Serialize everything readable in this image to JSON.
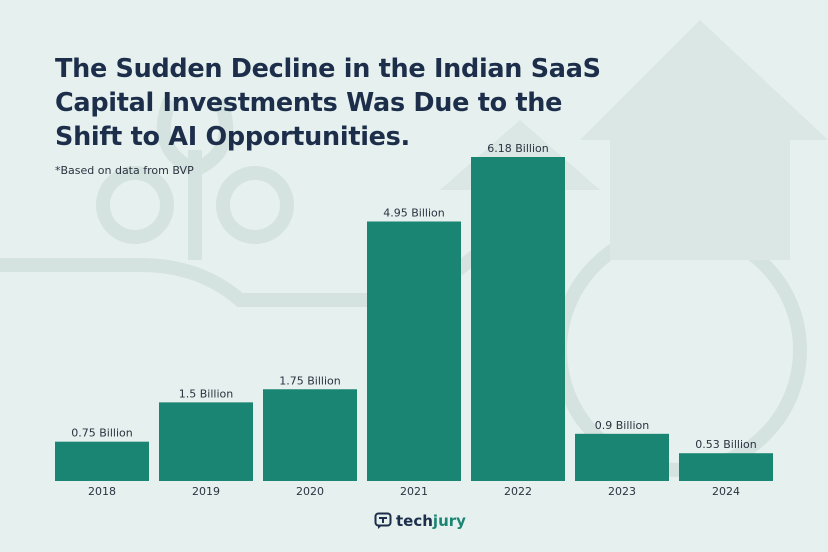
{
  "chart_data": {
    "type": "bar",
    "title": "The Sudden Decline in the Indian SaaS Capital Investments Was Due to the Shift to AI Opportunities.",
    "subtitle": "*Based on data from BVP",
    "categories": [
      "2018",
      "2019",
      "2020",
      "2021",
      "2022",
      "2023",
      "2024"
    ],
    "values": [
      0.75,
      1.5,
      1.75,
      4.95,
      6.18,
      0.9,
      0.53
    ],
    "data_labels": [
      "0.75 Billion",
      "1.5 Billion",
      "1.75 Billion",
      "4.95 Billion",
      "6.18 Billion",
      "0.9 Billion",
      "0.53 Billion"
    ],
    "xlabel": "",
    "ylabel": "",
    "ylim": [
      0,
      6.18
    ],
    "grid": false,
    "legend": "none",
    "colors": {
      "bar": "#1b8573",
      "background": "#e6f0ee",
      "title": "#1c2e4a"
    }
  },
  "branding": {
    "logo_part1": "tech",
    "logo_part2": "jury"
  }
}
